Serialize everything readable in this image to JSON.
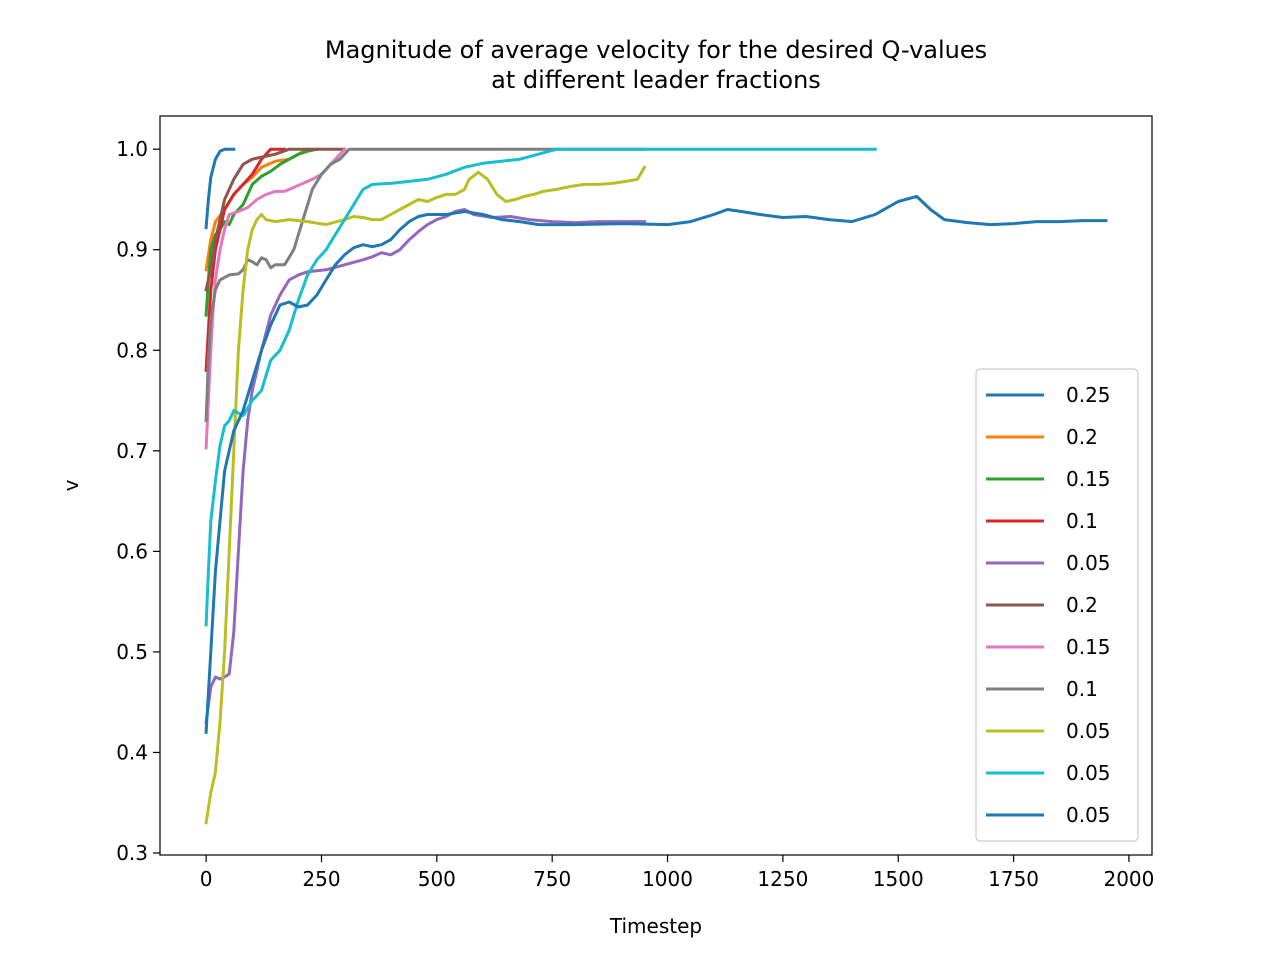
{
  "chart_data": {
    "type": "line",
    "title": "Magnitude of average velocity for the desired Q-values\nat different leader fractions",
    "xlabel": "Timestep",
    "ylabel": "v",
    "xlim": [
      -100,
      2050
    ],
    "ylim": [
      0.298,
      1.033
    ],
    "xticks": [
      0,
      250,
      500,
      750,
      1000,
      1250,
      1500,
      1750,
      2000
    ],
    "yticks": [
      0.3,
      0.4,
      0.5,
      0.6,
      0.7,
      0.8,
      0.9,
      1.0
    ],
    "legend_position": "lower-right",
    "series": [
      {
        "name": "0.25",
        "color": "#1f77b4",
        "points": [
          [
            0,
            0.922
          ],
          [
            5,
            0.95
          ],
          [
            10,
            0.972
          ],
          [
            20,
            0.99
          ],
          [
            30,
            0.998
          ],
          [
            40,
            1.0
          ],
          [
            60,
            1.0
          ]
        ]
      },
      {
        "name": "0.2",
        "color": "#ff7f0e",
        "points": [
          [
            0,
            0.88
          ],
          [
            10,
            0.91
          ],
          [
            20,
            0.928
          ],
          [
            40,
            0.94
          ],
          [
            60,
            0.955
          ],
          [
            80,
            0.965
          ],
          [
            100,
            0.972
          ],
          [
            120,
            0.982
          ],
          [
            150,
            0.988
          ],
          [
            180,
            0.99
          ],
          [
            200,
            0.995
          ],
          [
            220,
            1.0
          ]
        ]
      },
      {
        "name": "0.15",
        "color": "#2ca02c",
        "points": [
          [
            0,
            0.835
          ],
          [
            5,
            0.87
          ],
          [
            10,
            0.9
          ],
          [
            20,
            0.915
          ],
          [
            30,
            0.92
          ],
          [
            40,
            0.928
          ],
          [
            50,
            0.925
          ],
          [
            60,
            0.935
          ],
          [
            80,
            0.945
          ],
          [
            100,
            0.965
          ],
          [
            120,
            0.973
          ],
          [
            140,
            0.978
          ],
          [
            160,
            0.985
          ],
          [
            180,
            0.99
          ],
          [
            200,
            0.995
          ],
          [
            220,
            0.998
          ],
          [
            240,
            1.0
          ]
        ]
      },
      {
        "name": "0.1",
        "color": "#d62728",
        "points": [
          [
            0,
            0.78
          ],
          [
            5,
            0.82
          ],
          [
            10,
            0.86
          ],
          [
            20,
            0.9
          ],
          [
            30,
            0.92
          ],
          [
            40,
            0.94
          ],
          [
            60,
            0.955
          ],
          [
            80,
            0.965
          ],
          [
            100,
            0.975
          ],
          [
            120,
            0.99
          ],
          [
            140,
            1.0
          ],
          [
            170,
            1.0
          ]
        ]
      },
      {
        "name": "0.05",
        "color": "#9467bd",
        "points": [
          [
            0,
            0.43
          ],
          [
            10,
            0.465
          ],
          [
            20,
            0.475
          ],
          [
            30,
            0.473
          ],
          [
            40,
            0.475
          ],
          [
            50,
            0.478
          ],
          [
            60,
            0.52
          ],
          [
            70,
            0.6
          ],
          [
            80,
            0.68
          ],
          [
            90,
            0.73
          ],
          [
            100,
            0.76
          ],
          [
            120,
            0.8
          ],
          [
            140,
            0.835
          ],
          [
            160,
            0.855
          ],
          [
            180,
            0.87
          ],
          [
            200,
            0.875
          ],
          [
            220,
            0.878
          ],
          [
            260,
            0.88
          ],
          [
            300,
            0.885
          ],
          [
            340,
            0.89
          ],
          [
            360,
            0.893
          ],
          [
            380,
            0.897
          ],
          [
            400,
            0.895
          ],
          [
            420,
            0.9
          ],
          [
            440,
            0.91
          ],
          [
            460,
            0.918
          ],
          [
            480,
            0.925
          ],
          [
            500,
            0.93
          ],
          [
            520,
            0.933
          ],
          [
            540,
            0.938
          ],
          [
            560,
            0.94
          ],
          [
            580,
            0.935
          ],
          [
            620,
            0.932
          ],
          [
            660,
            0.933
          ],
          [
            700,
            0.93
          ],
          [
            750,
            0.928
          ],
          [
            800,
            0.927
          ],
          [
            850,
            0.928
          ],
          [
            900,
            0.928
          ],
          [
            950,
            0.928
          ]
        ]
      },
      {
        "name": "0.2",
        "color": "#8c564b",
        "points": [
          [
            0,
            0.86
          ],
          [
            10,
            0.88
          ],
          [
            20,
            0.91
          ],
          [
            30,
            0.93
          ],
          [
            40,
            0.95
          ],
          [
            60,
            0.97
          ],
          [
            80,
            0.985
          ],
          [
            100,
            0.99
          ],
          [
            150,
            0.995
          ],
          [
            180,
            1.0
          ],
          [
            300,
            1.0
          ]
        ]
      },
      {
        "name": "0.15",
        "color": "#e377c2",
        "points": [
          [
            0,
            0.703
          ],
          [
            5,
            0.75
          ],
          [
            10,
            0.8
          ],
          [
            15,
            0.84
          ],
          [
            20,
            0.87
          ],
          [
            30,
            0.9
          ],
          [
            40,
            0.92
          ],
          [
            50,
            0.935
          ],
          [
            70,
            0.938
          ],
          [
            90,
            0.942
          ],
          [
            110,
            0.95
          ],
          [
            130,
            0.955
          ],
          [
            150,
            0.958
          ],
          [
            170,
            0.958
          ],
          [
            190,
            0.962
          ],
          [
            210,
            0.966
          ],
          [
            230,
            0.97
          ],
          [
            250,
            0.975
          ],
          [
            270,
            0.985
          ],
          [
            290,
            0.995
          ],
          [
            300,
            1.0
          ]
        ]
      },
      {
        "name": "0.1",
        "color": "#7f7f7f",
        "points": [
          [
            0,
            0.73
          ],
          [
            5,
            0.79
          ],
          [
            10,
            0.83
          ],
          [
            20,
            0.86
          ],
          [
            30,
            0.87
          ],
          [
            50,
            0.875
          ],
          [
            70,
            0.876
          ],
          [
            80,
            0.88
          ],
          [
            90,
            0.89
          ],
          [
            100,
            0.888
          ],
          [
            110,
            0.885
          ],
          [
            120,
            0.892
          ],
          [
            130,
            0.89
          ],
          [
            140,
            0.882
          ],
          [
            150,
            0.885
          ],
          [
            170,
            0.885
          ],
          [
            190,
            0.9
          ],
          [
            210,
            0.93
          ],
          [
            230,
            0.96
          ],
          [
            250,
            0.975
          ],
          [
            270,
            0.985
          ],
          [
            290,
            0.99
          ],
          [
            310,
            1.0
          ],
          [
            950,
            1.0
          ]
        ]
      },
      {
        "name": "0.05",
        "color": "#bcbd22",
        "points": [
          [
            0,
            0.33
          ],
          [
            10,
            0.36
          ],
          [
            20,
            0.38
          ],
          [
            30,
            0.43
          ],
          [
            40,
            0.5
          ],
          [
            50,
            0.6
          ],
          [
            60,
            0.7
          ],
          [
            70,
            0.8
          ],
          [
            80,
            0.86
          ],
          [
            90,
            0.9
          ],
          [
            100,
            0.92
          ],
          [
            110,
            0.93
          ],
          [
            120,
            0.935
          ],
          [
            130,
            0.93
          ],
          [
            150,
            0.928
          ],
          [
            180,
            0.93
          ],
          [
            220,
            0.928
          ],
          [
            260,
            0.925
          ],
          [
            300,
            0.93
          ],
          [
            320,
            0.933
          ],
          [
            340,
            0.932
          ],
          [
            360,
            0.93
          ],
          [
            380,
            0.93
          ],
          [
            400,
            0.935
          ],
          [
            420,
            0.94
          ],
          [
            440,
            0.945
          ],
          [
            460,
            0.95
          ],
          [
            480,
            0.948
          ],
          [
            500,
            0.952
          ],
          [
            520,
            0.955
          ],
          [
            540,
            0.955
          ],
          [
            560,
            0.96
          ],
          [
            570,
            0.97
          ],
          [
            590,
            0.977
          ],
          [
            610,
            0.97
          ],
          [
            630,
            0.955
          ],
          [
            650,
            0.948
          ],
          [
            670,
            0.95
          ],
          [
            690,
            0.953
          ],
          [
            710,
            0.955
          ],
          [
            730,
            0.958
          ],
          [
            760,
            0.96
          ],
          [
            790,
            0.963
          ],
          [
            820,
            0.965
          ],
          [
            850,
            0.965
          ],
          [
            880,
            0.966
          ],
          [
            910,
            0.968
          ],
          [
            935,
            0.97
          ],
          [
            950,
            0.982
          ]
        ]
      },
      {
        "name": "0.05",
        "color": "#17becf",
        "points": [
          [
            0,
            0.527
          ],
          [
            5,
            0.58
          ],
          [
            10,
            0.63
          ],
          [
            20,
            0.67
          ],
          [
            30,
            0.705
          ],
          [
            40,
            0.725
          ],
          [
            50,
            0.73
          ],
          [
            60,
            0.74
          ],
          [
            80,
            0.735
          ],
          [
            100,
            0.75
          ],
          [
            120,
            0.76
          ],
          [
            140,
            0.79
          ],
          [
            160,
            0.8
          ],
          [
            180,
            0.82
          ],
          [
            200,
            0.85
          ],
          [
            220,
            0.875
          ],
          [
            240,
            0.89
          ],
          [
            260,
            0.9
          ],
          [
            280,
            0.915
          ],
          [
            300,
            0.93
          ],
          [
            320,
            0.945
          ],
          [
            340,
            0.96
          ],
          [
            360,
            0.965
          ],
          [
            400,
            0.966
          ],
          [
            440,
            0.968
          ],
          [
            480,
            0.97
          ],
          [
            520,
            0.975
          ],
          [
            560,
            0.982
          ],
          [
            600,
            0.986
          ],
          [
            640,
            0.988
          ],
          [
            680,
            0.99
          ],
          [
            720,
            0.995
          ],
          [
            760,
            1.0
          ],
          [
            1450,
            1.0
          ]
        ]
      },
      {
        "name": "0.05",
        "color": "#1f77b4",
        "points": [
          [
            0,
            0.42
          ],
          [
            10,
            0.5
          ],
          [
            20,
            0.58
          ],
          [
            30,
            0.63
          ],
          [
            40,
            0.68
          ],
          [
            60,
            0.72
          ],
          [
            80,
            0.74
          ],
          [
            100,
            0.77
          ],
          [
            120,
            0.8
          ],
          [
            140,
            0.825
          ],
          [
            160,
            0.845
          ],
          [
            180,
            0.848
          ],
          [
            200,
            0.843
          ],
          [
            220,
            0.845
          ],
          [
            240,
            0.855
          ],
          [
            260,
            0.87
          ],
          [
            280,
            0.885
          ],
          [
            300,
            0.895
          ],
          [
            320,
            0.902
          ],
          [
            340,
            0.905
          ],
          [
            360,
            0.903
          ],
          [
            380,
            0.905
          ],
          [
            400,
            0.91
          ],
          [
            420,
            0.92
          ],
          [
            440,
            0.928
          ],
          [
            460,
            0.933
          ],
          [
            480,
            0.935
          ],
          [
            520,
            0.935
          ],
          [
            560,
            0.938
          ],
          [
            600,
            0.935
          ],
          [
            640,
            0.93
          ],
          [
            680,
            0.928
          ],
          [
            720,
            0.925
          ],
          [
            800,
            0.925
          ],
          [
            900,
            0.926
          ],
          [
            1000,
            0.925
          ],
          [
            1050,
            0.928
          ],
          [
            1100,
            0.935
          ],
          [
            1130,
            0.94
          ],
          [
            1160,
            0.938
          ],
          [
            1200,
            0.935
          ],
          [
            1250,
            0.932
          ],
          [
            1300,
            0.933
          ],
          [
            1350,
            0.93
          ],
          [
            1400,
            0.928
          ],
          [
            1450,
            0.935
          ],
          [
            1500,
            0.948
          ],
          [
            1540,
            0.953
          ],
          [
            1570,
            0.94
          ],
          [
            1600,
            0.93
          ],
          [
            1650,
            0.927
          ],
          [
            1700,
            0.925
          ],
          [
            1750,
            0.926
          ],
          [
            1800,
            0.928
          ],
          [
            1850,
            0.928
          ],
          [
            1900,
            0.929
          ],
          [
            1950,
            0.929
          ]
        ]
      }
    ]
  }
}
